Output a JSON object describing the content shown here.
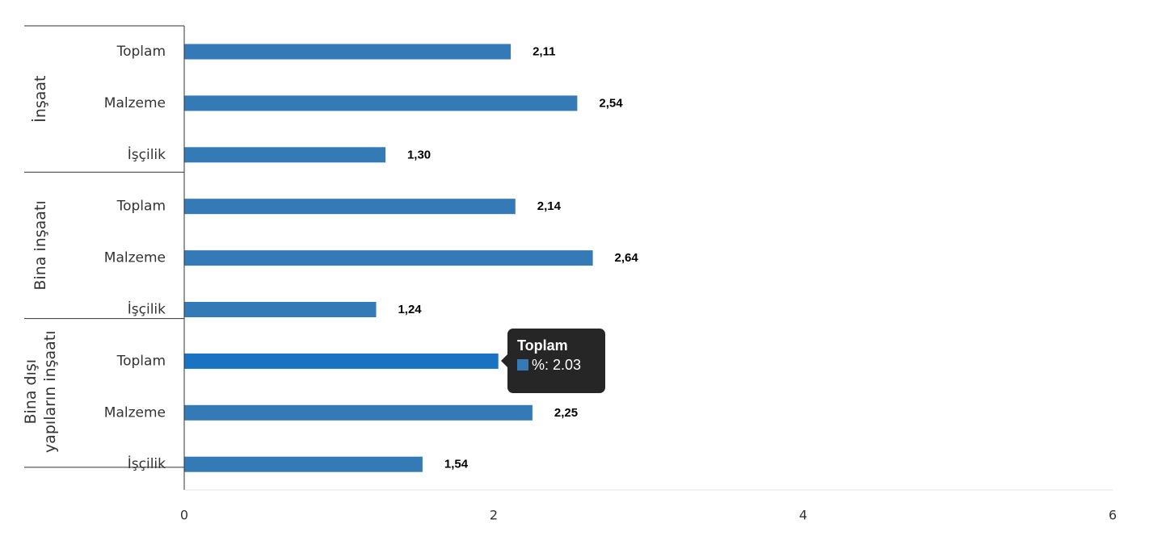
{
  "chart_data": {
    "type": "bar",
    "orientation": "horizontal",
    "groups": [
      {
        "label": "İnşaat",
        "label_lines": [
          "İnşaat"
        ],
        "categories": [
          "Toplam",
          "Malzeme",
          "İşçilik"
        ],
        "values": [
          2.11,
          2.54,
          1.3
        ],
        "data_labels": [
          "2,11",
          "2,54",
          "1,30"
        ]
      },
      {
        "label": "Bina inşaatı",
        "label_lines": [
          "Bina inşaatı"
        ],
        "categories": [
          "Toplam",
          "Malzeme",
          "İşçilik"
        ],
        "values": [
          2.14,
          2.64,
          1.24
        ],
        "data_labels": [
          "2,14",
          "2,64",
          "1,24"
        ]
      },
      {
        "label": "Bina dışı yapıların inşaatı",
        "label_lines": [
          "Bina dışı",
          "yapıların inşaatı"
        ],
        "categories": [
          "Toplam",
          "Malzeme",
          "İşçilik"
        ],
        "values": [
          2.03,
          2.25,
          1.54
        ],
        "data_labels": [
          "2,03",
          "2,25",
          "1,54"
        ]
      }
    ],
    "xlim": [
      0,
      6
    ],
    "x_ticks": [
      "0",
      "2",
      "4",
      "6"
    ],
    "xlabel": "",
    "ylabel": "",
    "grid": false,
    "bar_color": "#337ab7",
    "highlight_color": "#1a72c2",
    "highlighted": {
      "group": 2,
      "index": 0
    }
  },
  "tooltip": {
    "title": "Toplam",
    "series_label": "%: 2.03",
    "swatch_color": "#337ab7"
  }
}
